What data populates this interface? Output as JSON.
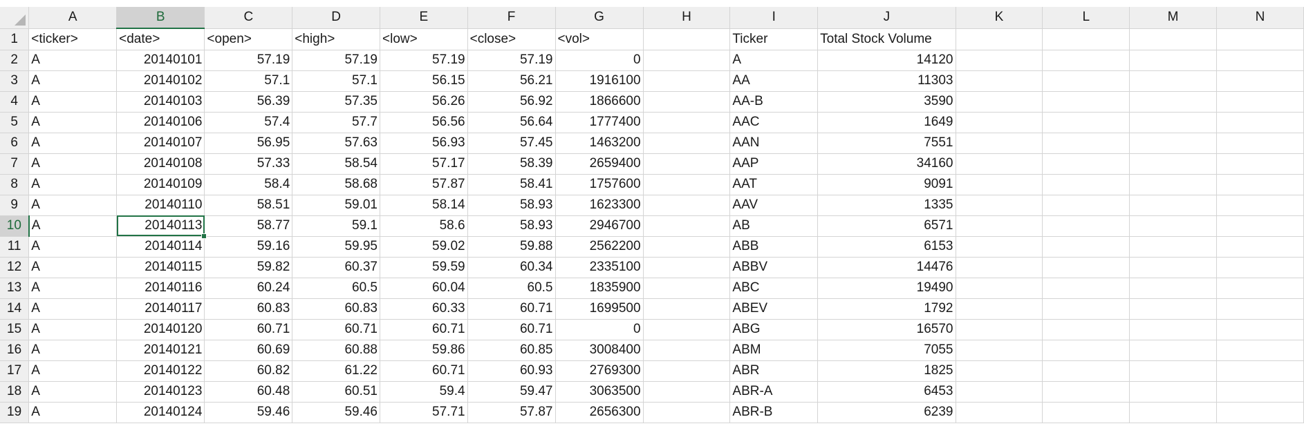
{
  "columns": [
    "A",
    "B",
    "C",
    "D",
    "E",
    "F",
    "G",
    "H",
    "I",
    "J",
    "K",
    "L",
    "M",
    "N"
  ],
  "active_column": "B",
  "active_row": 10,
  "active_cell": "B10",
  "rows": [
    {
      "n": "1",
      "cells": [
        "<ticker>",
        "<date>",
        "<open>",
        "<high>",
        "<low>",
        "<close>",
        "<vol>",
        "",
        "Ticker",
        "Total Stock Volume",
        "",
        "",
        "",
        ""
      ]
    },
    {
      "n": "2",
      "cells": [
        "A",
        "20140101",
        "57.19",
        "57.19",
        "57.19",
        "57.19",
        "0",
        "",
        "A",
        "14120",
        "",
        "",
        "",
        ""
      ]
    },
    {
      "n": "3",
      "cells": [
        "A",
        "20140102",
        "57.1",
        "57.1",
        "56.15",
        "56.21",
        "1916100",
        "",
        "AA",
        "11303",
        "",
        "",
        "",
        ""
      ]
    },
    {
      "n": "4",
      "cells": [
        "A",
        "20140103",
        "56.39",
        "57.35",
        "56.26",
        "56.92",
        "1866600",
        "",
        "AA-B",
        "3590",
        "",
        "",
        "",
        ""
      ]
    },
    {
      "n": "5",
      "cells": [
        "A",
        "20140106",
        "57.4",
        "57.7",
        "56.56",
        "56.64",
        "1777400",
        "",
        "AAC",
        "1649",
        "",
        "",
        "",
        ""
      ]
    },
    {
      "n": "6",
      "cells": [
        "A",
        "20140107",
        "56.95",
        "57.63",
        "56.93",
        "57.45",
        "1463200",
        "",
        "AAN",
        "7551",
        "",
        "",
        "",
        ""
      ]
    },
    {
      "n": "7",
      "cells": [
        "A",
        "20140108",
        "57.33",
        "58.54",
        "57.17",
        "58.39",
        "2659400",
        "",
        "AAP",
        "34160",
        "",
        "",
        "",
        ""
      ]
    },
    {
      "n": "8",
      "cells": [
        "A",
        "20140109",
        "58.4",
        "58.68",
        "57.87",
        "58.41",
        "1757600",
        "",
        "AAT",
        "9091",
        "",
        "",
        "",
        ""
      ]
    },
    {
      "n": "9",
      "cells": [
        "A",
        "20140110",
        "58.51",
        "59.01",
        "58.14",
        "58.93",
        "1623300",
        "",
        "AAV",
        "1335",
        "",
        "",
        "",
        ""
      ]
    },
    {
      "n": "10",
      "cells": [
        "A",
        "20140113",
        "58.77",
        "59.1",
        "58.6",
        "58.93",
        "2946700",
        "",
        "AB",
        "6571",
        "",
        "",
        "",
        ""
      ]
    },
    {
      "n": "11",
      "cells": [
        "A",
        "20140114",
        "59.16",
        "59.95",
        "59.02",
        "59.88",
        "2562200",
        "",
        "ABB",
        "6153",
        "",
        "",
        "",
        ""
      ]
    },
    {
      "n": "12",
      "cells": [
        "A",
        "20140115",
        "59.82",
        "60.37",
        "59.59",
        "60.34",
        "2335100",
        "",
        "ABBV",
        "14476",
        "",
        "",
        "",
        ""
      ]
    },
    {
      "n": "13",
      "cells": [
        "A",
        "20140116",
        "60.24",
        "60.5",
        "60.04",
        "60.5",
        "1835900",
        "",
        "ABC",
        "19490",
        "",
        "",
        "",
        ""
      ]
    },
    {
      "n": "14",
      "cells": [
        "A",
        "20140117",
        "60.83",
        "60.83",
        "60.33",
        "60.71",
        "1699500",
        "",
        "ABEV",
        "1792",
        "",
        "",
        "",
        ""
      ]
    },
    {
      "n": "15",
      "cells": [
        "A",
        "20140120",
        "60.71",
        "60.71",
        "60.71",
        "60.71",
        "0",
        "",
        "ABG",
        "16570",
        "",
        "",
        "",
        ""
      ]
    },
    {
      "n": "16",
      "cells": [
        "A",
        "20140121",
        "60.69",
        "60.88",
        "59.86",
        "60.85",
        "3008400",
        "",
        "ABM",
        "7055",
        "",
        "",
        "",
        ""
      ]
    },
    {
      "n": "17",
      "cells": [
        "A",
        "20140122",
        "60.82",
        "61.22",
        "60.71",
        "60.93",
        "2769300",
        "",
        "ABR",
        "1825",
        "",
        "",
        "",
        ""
      ]
    },
    {
      "n": "18",
      "cells": [
        "A",
        "20140123",
        "60.48",
        "60.51",
        "59.4",
        "59.47",
        "3063500",
        "",
        "ABR-A",
        "6453",
        "",
        "",
        "",
        ""
      ]
    },
    {
      "n": "19",
      "cells": [
        "A",
        "20140124",
        "59.46",
        "59.46",
        "57.71",
        "57.87",
        "2656300",
        "",
        "ABR-B",
        "6239",
        "",
        "",
        "",
        ""
      ]
    }
  ]
}
